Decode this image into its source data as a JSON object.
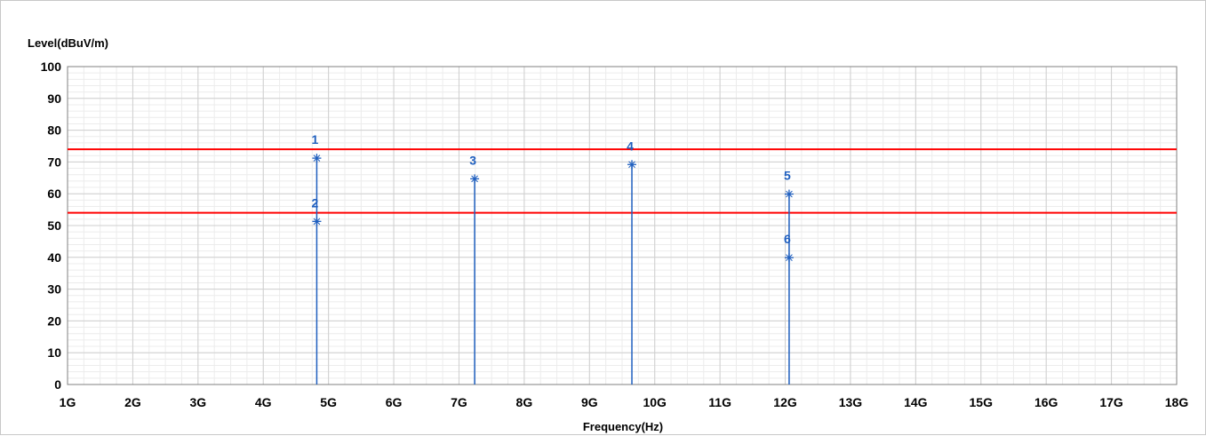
{
  "chart_data": {
    "type": "scatter",
    "title": "",
    "ylabel": "Level(dBuV/m)",
    "xlabel": "Frequency(Hz)",
    "xlim": [
      1,
      18
    ],
    "ylim": [
      0,
      100
    ],
    "x_unit": "GHz",
    "x_ticks": [
      {
        "value": 1,
        "label": "1G"
      },
      {
        "value": 2,
        "label": "2G"
      },
      {
        "value": 3,
        "label": "3G"
      },
      {
        "value": 4,
        "label": "4G"
      },
      {
        "value": 5,
        "label": "5G"
      },
      {
        "value": 6,
        "label": "6G"
      },
      {
        "value": 7,
        "label": "7G"
      },
      {
        "value": 8,
        "label": "8G"
      },
      {
        "value": 9,
        "label": "9G"
      },
      {
        "value": 10,
        "label": "10G"
      },
      {
        "value": 11,
        "label": "11G"
      },
      {
        "value": 12,
        "label": "12G"
      },
      {
        "value": 13,
        "label": "13G"
      },
      {
        "value": 14,
        "label": "14G"
      },
      {
        "value": 15,
        "label": "15G"
      },
      {
        "value": 16,
        "label": "16G"
      },
      {
        "value": 17,
        "label": "17G"
      },
      {
        "value": 18,
        "label": "18G"
      }
    ],
    "y_ticks": [
      0,
      10,
      20,
      30,
      40,
      50,
      60,
      70,
      80,
      90,
      100
    ],
    "grid": true,
    "limit_lines": [
      {
        "value": 74,
        "color": "#ff0000"
      },
      {
        "value": 54,
        "color": "#ff0000"
      }
    ],
    "markers": [
      {
        "label": "1",
        "x": 4.82,
        "y": 71.2
      },
      {
        "label": "2",
        "x": 4.82,
        "y": 51.3
      },
      {
        "label": "3",
        "x": 7.24,
        "y": 64.7
      },
      {
        "label": "4",
        "x": 9.65,
        "y": 69.2
      },
      {
        "label": "5",
        "x": 12.06,
        "y": 59.9
      },
      {
        "label": "6",
        "x": 12.06,
        "y": 39.9
      }
    ],
    "colors": {
      "marker": "#1f5fbf",
      "limit": "#ff0000",
      "grid_major": "#cfcfcf",
      "grid_minor": "#ececec"
    }
  }
}
